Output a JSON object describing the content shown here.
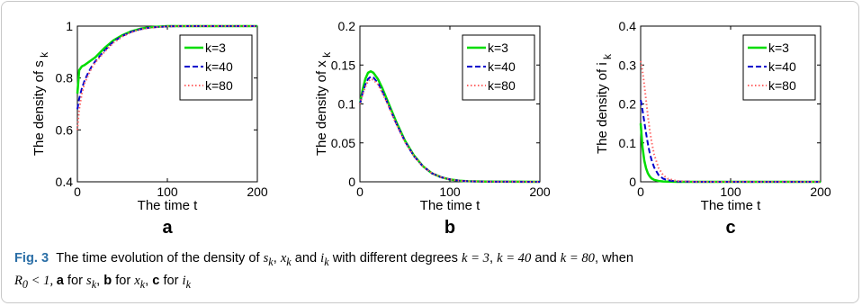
{
  "chart_data": [
    {
      "type": "line",
      "panel_letter": "a",
      "xlabel": "The time t",
      "ylabel": "The density of s",
      "ylabel_sub": "k",
      "xlim": [
        0,
        200
      ],
      "ylim": [
        0.4,
        1
      ],
      "xticks": [
        0,
        100,
        200
      ],
      "yticks": [
        0.4,
        0.6,
        0.8,
        1
      ],
      "ytick_labels": [
        "0.4",
        "0.6",
        "0.8",
        "1"
      ],
      "legend_position": "top-right",
      "series": [
        {
          "name": "k=3",
          "color": "#00dd00",
          "dash": "solid",
          "x": [
            0,
            2,
            5,
            8,
            12,
            16,
            20,
            30,
            40,
            50,
            60,
            70,
            80,
            90,
            100,
            120,
            150,
            200
          ],
          "y": [
            0.74,
            0.83,
            0.845,
            0.85,
            0.86,
            0.87,
            0.88,
            0.915,
            0.945,
            0.965,
            0.98,
            0.99,
            0.995,
            0.998,
            1.0,
            1.0,
            1.0,
            1.0
          ]
        },
        {
          "name": "k=40",
          "color": "#0000cc",
          "dash": "dashed",
          "x": [
            0,
            2,
            5,
            8,
            12,
            16,
            20,
            30,
            40,
            50,
            60,
            70,
            80,
            90,
            100,
            120,
            150,
            200
          ],
          "y": [
            0.68,
            0.72,
            0.76,
            0.79,
            0.82,
            0.845,
            0.865,
            0.905,
            0.94,
            0.962,
            0.978,
            0.988,
            0.994,
            0.997,
            0.999,
            1.0,
            1.0,
            1.0
          ]
        },
        {
          "name": "k=80",
          "color": "#ff6666",
          "dash": "dotted",
          "x": [
            0,
            2,
            5,
            8,
            12,
            16,
            20,
            30,
            40,
            50,
            60,
            70,
            80,
            90,
            100,
            120,
            150,
            200
          ],
          "y": [
            0.6,
            0.68,
            0.74,
            0.78,
            0.81,
            0.84,
            0.86,
            0.9,
            0.935,
            0.96,
            0.976,
            0.987,
            0.993,
            0.997,
            0.999,
            1.0,
            1.0,
            1.0
          ]
        }
      ]
    },
    {
      "type": "line",
      "panel_letter": "b",
      "xlabel": "The time t",
      "ylabel": "The density of x",
      "ylabel_sub": "k",
      "xlim": [
        0,
        200
      ],
      "ylim": [
        0,
        0.2
      ],
      "xticks": [
        0,
        100,
        200
      ],
      "yticks": [
        0,
        0.05,
        0.1,
        0.15,
        0.2
      ],
      "ytick_labels": [
        "0",
        "0.05",
        "0.1",
        "0.15",
        "0.2"
      ],
      "legend_position": "top-right",
      "series": [
        {
          "name": "k=3",
          "color": "#00dd00",
          "dash": "solid",
          "x": [
            0,
            3,
            6,
            9,
            12,
            15,
            20,
            25,
            30,
            40,
            50,
            60,
            70,
            80,
            90,
            100,
            110,
            120,
            140,
            200
          ],
          "y": [
            0.1,
            0.118,
            0.132,
            0.14,
            0.142,
            0.14,
            0.132,
            0.12,
            0.106,
            0.078,
            0.053,
            0.034,
            0.02,
            0.011,
            0.006,
            0.003,
            0.0015,
            0.0007,
            0.0002,
            0.0
          ]
        },
        {
          "name": "k=40",
          "color": "#0000cc",
          "dash": "dashed",
          "x": [
            0,
            3,
            6,
            9,
            12,
            15,
            20,
            25,
            30,
            40,
            50,
            60,
            70,
            80,
            90,
            100,
            110,
            120,
            140,
            200
          ],
          "y": [
            0.1,
            0.114,
            0.125,
            0.132,
            0.135,
            0.134,
            0.127,
            0.116,
            0.103,
            0.076,
            0.052,
            0.033,
            0.02,
            0.011,
            0.006,
            0.003,
            0.0015,
            0.0007,
            0.0002,
            0.0
          ]
        },
        {
          "name": "k=80",
          "color": "#ff6666",
          "dash": "dotted",
          "x": [
            0,
            3,
            6,
            9,
            12,
            15,
            20,
            25,
            30,
            40,
            50,
            60,
            70,
            80,
            90,
            100,
            110,
            120,
            140,
            200
          ],
          "y": [
            0.1,
            0.112,
            0.122,
            0.129,
            0.132,
            0.131,
            0.125,
            0.114,
            0.102,
            0.075,
            0.051,
            0.033,
            0.02,
            0.011,
            0.006,
            0.003,
            0.0015,
            0.0007,
            0.0002,
            0.0
          ]
        }
      ]
    },
    {
      "type": "line",
      "panel_letter": "c",
      "xlabel": "The time t",
      "ylabel": "The density of i",
      "ylabel_sub": "k",
      "xlim": [
        0,
        200
      ],
      "ylim": [
        0,
        0.4
      ],
      "xticks": [
        0,
        100,
        200
      ],
      "yticks": [
        0,
        0.1,
        0.2,
        0.3,
        0.4
      ],
      "ytick_labels": [
        "0",
        "0.1",
        "0.2",
        "0.3",
        "0.4"
      ],
      "legend_position": "top-right",
      "series": [
        {
          "name": "k=3",
          "color": "#00dd00",
          "dash": "solid",
          "x": [
            0,
            1,
            2,
            4,
            6,
            8,
            10,
            12,
            15,
            20,
            25,
            30,
            40,
            60,
            100,
            200
          ],
          "y": [
            0.15,
            0.12,
            0.09,
            0.055,
            0.035,
            0.022,
            0.014,
            0.009,
            0.005,
            0.002,
            0.001,
            0.0005,
            0.0,
            0.0,
            0.0,
            0.0
          ]
        },
        {
          "name": "k=40",
          "color": "#0000cc",
          "dash": "dashed",
          "x": [
            0,
            1,
            2,
            4,
            6,
            8,
            10,
            12,
            15,
            20,
            25,
            30,
            40,
            60,
            100,
            200
          ],
          "y": [
            0.21,
            0.2,
            0.185,
            0.155,
            0.125,
            0.098,
            0.075,
            0.057,
            0.037,
            0.017,
            0.008,
            0.004,
            0.001,
            0.0,
            0.0,
            0.0
          ]
        },
        {
          "name": "k=80",
          "color": "#ff6666",
          "dash": "dotted",
          "x": [
            0,
            1,
            2,
            4,
            6,
            8,
            10,
            12,
            15,
            20,
            25,
            30,
            40,
            60,
            100,
            200
          ],
          "y": [
            0.31,
            0.3,
            0.285,
            0.25,
            0.21,
            0.17,
            0.135,
            0.105,
            0.07,
            0.035,
            0.017,
            0.008,
            0.002,
            0.0,
            0.0,
            0.0
          ]
        }
      ]
    }
  ],
  "caption": {
    "label": "Fig. 3",
    "p1": "The time evolution of the density of ",
    "s": "s",
    "sub_k": "k",
    "comma_sp": ", ",
    "x": "x",
    "and_sp": " and ",
    "i": "i",
    "p2": " with different degrees ",
    "k_eq_3": "k = 3",
    "k_eq_40": "k = 40",
    "and_word": " and ",
    "k_eq_80": "k = 80",
    "when": ", when",
    "R": "R",
    "R_sub": "0",
    "lt1": " < 1, ",
    "a_bold": "a",
    "for_sp": " for ",
    "b_bold": "b",
    "c_bold": "c"
  }
}
